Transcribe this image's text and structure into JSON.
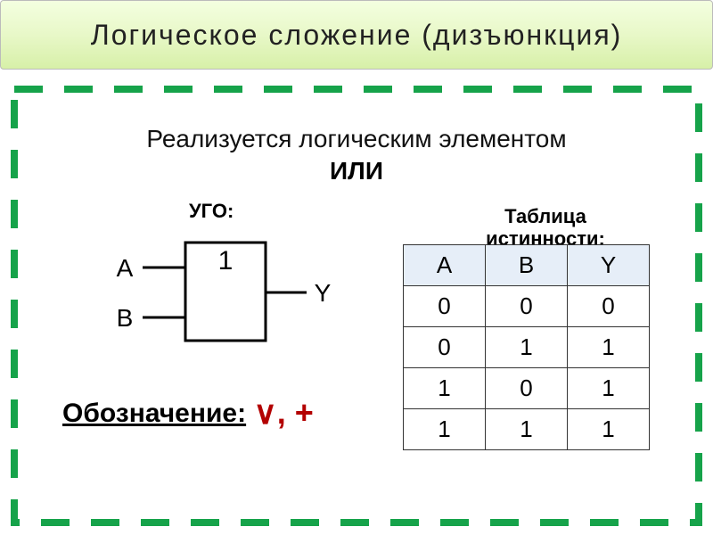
{
  "title": "Логическое сложение (дизъюнкция)",
  "subtitle": "Реализуется логическим элементом",
  "gate_name": "ИЛИ",
  "ugo_label": "УГО:",
  "gate": {
    "input_a": "A",
    "input_b": "B",
    "output": "Y",
    "symbol": "1",
    "stroke": "#000000",
    "fill": "#ffffff",
    "font_size": 28
  },
  "notation_label": "Обозначение:",
  "notation_symbols": "∨, +",
  "table_label": "Таблица истинности:",
  "truth_table": {
    "headers": [
      "A",
      "B",
      "Y"
    ],
    "rows": [
      [
        "0",
        "0",
        "0"
      ],
      [
        "0",
        "1",
        "1"
      ],
      [
        "1",
        "0",
        "1"
      ],
      [
        "1",
        "1",
        "1"
      ]
    ],
    "header_bg": "#e6eef8",
    "border_color": "#333333"
  },
  "frame": {
    "dash_color": "#16a34a",
    "dash_width": 8,
    "dash_array": "32 24"
  },
  "title_gradient": {
    "from": "#f4ffe0",
    "mid": "#e8f8c8",
    "to": "#d7f0a8"
  }
}
